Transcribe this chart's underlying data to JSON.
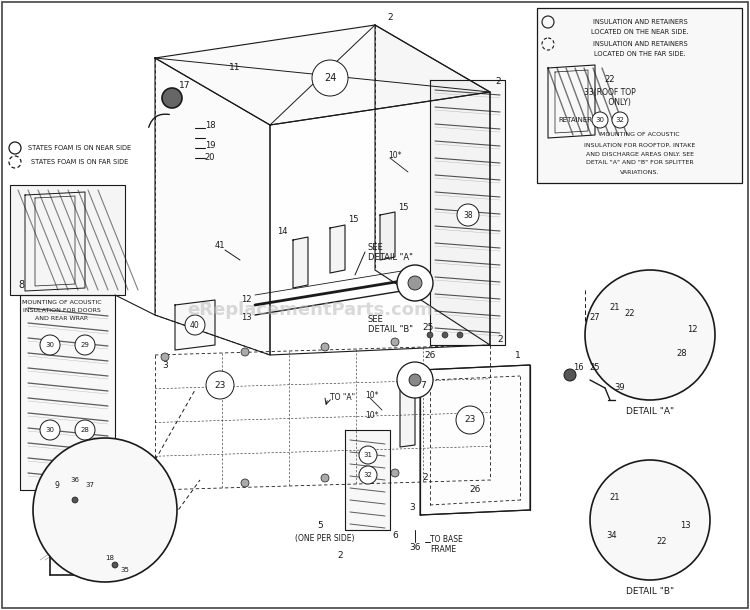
{
  "bg_color": "#ffffff",
  "line_color": "#1a1a1a",
  "watermark_text": "eReplacementParts.com",
  "watermark_color": "#bbbbbb",
  "watermark_alpha": 0.55,
  "legend_near": "STATES FOAM IS ON NEAR SIDE",
  "legend_far": "STATES FOAM IS ON FAR SIDE"
}
